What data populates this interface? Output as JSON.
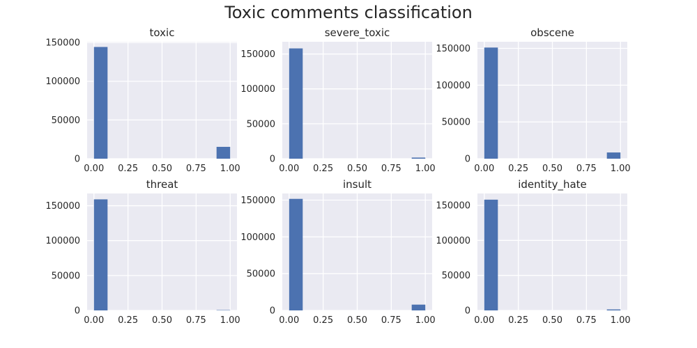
{
  "title": "Toxic comments classification",
  "chart_data": [
    {
      "type": "bar",
      "title": "toxic",
      "x_ticks": [
        "0.00",
        "0.25",
        "0.50",
        "0.75",
        "1.00"
      ],
      "xlim": [
        -0.05,
        1.05
      ],
      "y_ticks": [
        "0",
        "50000",
        "100000",
        "150000"
      ],
      "ylim": [
        0,
        151000
      ],
      "bins": [
        0.0,
        0.1,
        0.2,
        0.3,
        0.4,
        0.5,
        0.6,
        0.7,
        0.8,
        0.9,
        1.0
      ],
      "counts": [
        144277,
        0,
        0,
        0,
        0,
        0,
        0,
        0,
        0,
        15294
      ],
      "grid": true
    },
    {
      "type": "bar",
      "title": "severe_toxic",
      "x_ticks": [
        "0.00",
        "0.25",
        "0.50",
        "0.75",
        "1.00"
      ],
      "xlim": [
        -0.05,
        1.05
      ],
      "y_ticks": [
        "0",
        "50000",
        "100000",
        "150000"
      ],
      "ylim": [
        0,
        167500
      ],
      "bins": [
        0.0,
        0.1,
        0.2,
        0.3,
        0.4,
        0.5,
        0.6,
        0.7,
        0.8,
        0.9,
        1.0
      ],
      "counts": [
        157976,
        0,
        0,
        0,
        0,
        0,
        0,
        0,
        0,
        1595
      ],
      "grid": true
    },
    {
      "type": "bar",
      "title": "obscene",
      "x_ticks": [
        "0.00",
        "0.25",
        "0.50",
        "0.75",
        "1.00"
      ],
      "xlim": [
        -0.05,
        1.05
      ],
      "y_ticks": [
        "0",
        "50000",
        "100000",
        "150000"
      ],
      "ylim": [
        0,
        159000
      ],
      "bins": [
        0.0,
        0.1,
        0.2,
        0.3,
        0.4,
        0.5,
        0.6,
        0.7,
        0.8,
        0.9,
        1.0
      ],
      "counts": [
        151122,
        0,
        0,
        0,
        0,
        0,
        0,
        0,
        0,
        8449
      ],
      "grid": true
    },
    {
      "type": "bar",
      "title": "threat",
      "x_ticks": [
        "0.00",
        "0.25",
        "0.50",
        "0.75",
        "1.00"
      ],
      "xlim": [
        -0.05,
        1.05
      ],
      "y_ticks": [
        "0",
        "50000",
        "100000",
        "150000"
      ],
      "ylim": [
        0,
        167500
      ],
      "bins": [
        0.0,
        0.1,
        0.2,
        0.3,
        0.4,
        0.5,
        0.6,
        0.7,
        0.8,
        0.9,
        1.0
      ],
      "counts": [
        159093,
        0,
        0,
        0,
        0,
        0,
        0,
        0,
        0,
        478
      ],
      "grid": true
    },
    {
      "type": "bar",
      "title": "insult",
      "x_ticks": [
        "0.00",
        "0.25",
        "0.50",
        "0.75",
        "1.00"
      ],
      "xlim": [
        -0.05,
        1.05
      ],
      "y_ticks": [
        "0",
        "50000",
        "100000",
        "150000"
      ],
      "ylim": [
        0,
        159000
      ],
      "bins": [
        0.0,
        0.1,
        0.2,
        0.3,
        0.4,
        0.5,
        0.6,
        0.7,
        0.8,
        0.9,
        1.0
      ],
      "counts": [
        151694,
        0,
        0,
        0,
        0,
        0,
        0,
        0,
        0,
        7877
      ],
      "grid": true
    },
    {
      "type": "bar",
      "title": "identity_hate",
      "x_ticks": [
        "0.00",
        "0.25",
        "0.50",
        "0.75",
        "1.00"
      ],
      "xlim": [
        -0.05,
        1.05
      ],
      "y_ticks": [
        "0",
        "50000",
        "100000",
        "150000"
      ],
      "ylim": [
        0,
        167000
      ],
      "bins": [
        0.0,
        0.1,
        0.2,
        0.3,
        0.4,
        0.5,
        0.6,
        0.7,
        0.8,
        0.9,
        1.0
      ],
      "counts": [
        158166,
        0,
        0,
        0,
        0,
        0,
        0,
        0,
        0,
        1405
      ],
      "grid": true
    }
  ],
  "colors": {
    "bar": "#4c72b0",
    "axes_bg": "#eaeaf2",
    "grid": "#ffffff",
    "text": "#262626"
  }
}
